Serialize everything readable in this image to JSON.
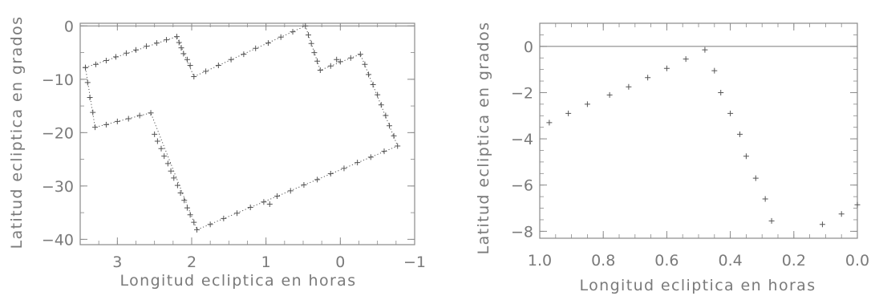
{
  "chart_data": [
    {
      "type": "scatter",
      "title": "",
      "xlabel": "Longitud ecliptica en horas",
      "ylabel": "Latitud ecliptica en grados",
      "xlim": [
        3.5,
        -1.0
      ],
      "ylim": [
        -41,
        0.5
      ],
      "x_ticks": [
        "3",
        "2",
        "1",
        "0",
        "−1"
      ],
      "x_tick_values": [
        3,
        2,
        1,
        0,
        -1
      ],
      "y_ticks": [
        "0",
        "−10",
        "−20",
        "−30",
        "−40"
      ],
      "y_tick_values": [
        0,
        -10,
        -20,
        -30,
        -40
      ],
      "grid": false,
      "reference_line_y": 0,
      "marker": "+",
      "outline_vertices": [
        [
          3.43,
          -7.8
        ],
        [
          2.2,
          -2.0
        ],
        [
          1.97,
          -9.5
        ],
        [
          0.47,
          0.0
        ],
        [
          0.27,
          -8.3
        ],
        [
          -0.27,
          -5.3
        ],
        [
          -0.77,
          -22.5
        ],
        [
          1.93,
          -38.2
        ],
        [
          2.55,
          -16.3
        ],
        [
          3.3,
          -19.0
        ],
        [
          3.43,
          -7.8
        ]
      ],
      "points": [
        [
          3.43,
          -7.8
        ],
        [
          3.29,
          -7.2
        ],
        [
          3.15,
          -6.5
        ],
        [
          3.02,
          -5.8
        ],
        [
          2.88,
          -5.1
        ],
        [
          2.75,
          -4.5
        ],
        [
          2.61,
          -3.8
        ],
        [
          2.47,
          -3.2
        ],
        [
          2.34,
          -2.6
        ],
        [
          2.2,
          -2.0
        ],
        [
          2.17,
          -3.1
        ],
        [
          2.14,
          -4.1
        ],
        [
          2.11,
          -5.2
        ],
        [
          2.06,
          -6.3
        ],
        [
          2.02,
          -7.4
        ],
        [
          1.97,
          -9.5
        ],
        [
          1.81,
          -8.5
        ],
        [
          1.64,
          -7.4
        ],
        [
          1.47,
          -6.3
        ],
        [
          1.3,
          -5.3
        ],
        [
          1.14,
          -4.2
        ],
        [
          0.97,
          -3.2
        ],
        [
          0.8,
          -2.1
        ],
        [
          0.64,
          -1.1
        ],
        [
          0.47,
          0.0
        ],
        [
          0.43,
          -1.7
        ],
        [
          0.39,
          -3.3
        ],
        [
          0.35,
          -5.0
        ],
        [
          0.31,
          -6.6
        ],
        [
          0.27,
          -8.3
        ],
        [
          0.13,
          -7.5
        ],
        [
          0.0,
          -6.7
        ],
        [
          -0.14,
          -6.0
        ],
        [
          -0.27,
          -5.3
        ],
        [
          -0.33,
          -7.2
        ],
        [
          -0.38,
          -9.1
        ],
        [
          -0.44,
          -11.0
        ],
        [
          -0.5,
          -12.9
        ],
        [
          -0.55,
          -14.8
        ],
        [
          -0.61,
          -16.8
        ],
        [
          -0.66,
          -18.7
        ],
        [
          -0.72,
          -20.6
        ],
        [
          -0.77,
          -22.5
        ],
        [
          -0.59,
          -23.5
        ],
        [
          -0.41,
          -24.6
        ],
        [
          -0.23,
          -25.6
        ],
        [
          -0.05,
          -26.7
        ],
        [
          0.13,
          -27.7
        ],
        [
          0.31,
          -28.8
        ],
        [
          0.49,
          -29.8
        ],
        [
          0.67,
          -30.9
        ],
        [
          0.85,
          -31.9
        ],
        [
          1.03,
          -33.0
        ],
        [
          1.21,
          -34.0
        ],
        [
          1.39,
          -35.1
        ],
        [
          1.57,
          -36.1
        ],
        [
          1.75,
          -37.2
        ],
        [
          1.93,
          -38.2
        ],
        [
          1.97,
          -36.8
        ],
        [
          2.02,
          -35.4
        ],
        [
          2.06,
          -34.1
        ],
        [
          2.1,
          -32.7
        ],
        [
          2.15,
          -31.3
        ],
        [
          2.19,
          -29.9
        ],
        [
          2.24,
          -28.5
        ],
        [
          2.28,
          -27.2
        ],
        [
          2.32,
          -25.8
        ],
        [
          2.37,
          -24.4
        ],
        [
          2.41,
          -23.0
        ],
        [
          2.46,
          -21.6
        ],
        [
          2.5,
          -20.3
        ],
        [
          2.55,
          -16.3
        ],
        [
          2.7,
          -16.8
        ],
        [
          2.85,
          -17.4
        ],
        [
          3.0,
          -17.9
        ],
        [
          3.15,
          -18.5
        ],
        [
          3.3,
          -19.0
        ],
        [
          3.33,
          -16.2
        ],
        [
          3.37,
          -13.4
        ],
        [
          3.4,
          -10.6
        ],
        [
          3.43,
          -7.8
        ],
        [
          0.95,
          -33.4
        ],
        [
          0.05,
          -6.3
        ]
      ]
    },
    {
      "type": "scatter",
      "title": "",
      "xlabel": "Longitud ecliptica en horas",
      "ylabel": "Latitud ecliptica en grados",
      "xlim": [
        1.0,
        0.0
      ],
      "ylim": [
        -8.3,
        1.0
      ],
      "x_ticks": [
        "1.0",
        "0.8",
        "0.6",
        "0.4",
        "0.2",
        "0.0"
      ],
      "x_tick_values": [
        1.0,
        0.8,
        0.6,
        0.4,
        0.2,
        0.0
      ],
      "y_ticks": [
        "0",
        "−2",
        "−4",
        "−6",
        "−8"
      ],
      "y_tick_values": [
        0,
        -2,
        -4,
        -6,
        -8
      ],
      "grid": false,
      "reference_line_y": 0,
      "marker": "+",
      "points": [
        [
          0.97,
          -3.3
        ],
        [
          0.91,
          -2.9
        ],
        [
          0.85,
          -2.5
        ],
        [
          0.78,
          -2.1
        ],
        [
          0.72,
          -1.75
        ],
        [
          0.66,
          -1.35
        ],
        [
          0.6,
          -0.95
        ],
        [
          0.54,
          -0.55
        ],
        [
          0.48,
          -0.15
        ],
        [
          0.45,
          -1.05
        ],
        [
          0.43,
          -2.0
        ],
        [
          0.4,
          -2.9
        ],
        [
          0.37,
          -3.8
        ],
        [
          0.35,
          -4.75
        ],
        [
          0.32,
          -5.7
        ],
        [
          0.29,
          -6.6
        ],
        [
          0.27,
          -7.55
        ],
        [
          0.11,
          -7.7
        ],
        [
          0.05,
          -7.25
        ],
        [
          0.0,
          -6.85
        ]
      ]
    }
  ]
}
